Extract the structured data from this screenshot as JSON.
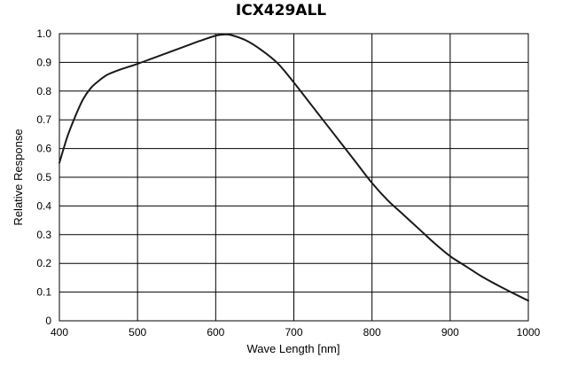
{
  "chart_data": {
    "type": "line",
    "title": "ICX429ALL",
    "xlabel": "Wave Length [nm]",
    "ylabel": "Relative Response",
    "xlim": [
      400,
      1000
    ],
    "ylim": [
      0,
      1.0
    ],
    "x_ticks": [
      "400",
      "500",
      "600",
      "700",
      "800",
      "900",
      "1000"
    ],
    "y_ticks": [
      "0",
      "0.1",
      "0.2",
      "0.3",
      "0.4",
      "0.5",
      "0.6",
      "0.7",
      "0.8",
      "0.9",
      "1.0"
    ],
    "x_tick_values": [
      400,
      500,
      600,
      700,
      800,
      900,
      1000
    ],
    "y_tick_values": [
      0,
      0.1,
      0.2,
      0.3,
      0.4,
      0.5,
      0.6,
      0.7,
      0.8,
      0.9,
      1.0
    ],
    "grid": true,
    "series": [
      {
        "color": "#1a1a1a",
        "x": [
          400,
          410,
          420,
          430,
          440,
          450,
          460,
          470,
          480,
          500,
          520,
          540,
          560,
          580,
          600,
          610,
          620,
          640,
          660,
          680,
          700,
          720,
          740,
          760,
          780,
          800,
          820,
          840,
          860,
          880,
          900,
          920,
          940,
          960,
          980,
          1000
        ],
        "y": [
          0.55,
          0.64,
          0.71,
          0.77,
          0.81,
          0.835,
          0.855,
          0.867,
          0.877,
          0.895,
          0.915,
          0.935,
          0.955,
          0.975,
          0.993,
          0.997,
          0.995,
          0.975,
          0.94,
          0.895,
          0.83,
          0.76,
          0.69,
          0.62,
          0.55,
          0.48,
          0.42,
          0.37,
          0.32,
          0.27,
          0.225,
          0.19,
          0.155,
          0.125,
          0.097,
          0.07
        ]
      }
    ]
  }
}
